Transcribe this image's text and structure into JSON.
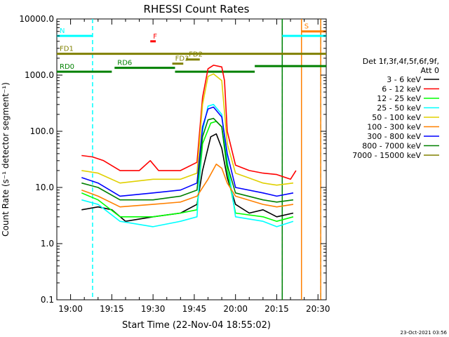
{
  "chart_data": {
    "type": "line",
    "title": "RHESSI Count Rates",
    "xlabel": "Start Time (22-Nov-04 18:55:02)",
    "ylabel": "Count Rate (s⁻¹ detector segment⁻¹)",
    "yscale": "log",
    "xlim": [
      "18:55",
      "20:33"
    ],
    "ylim": [
      0.1,
      10000.0
    ],
    "x_ticks": [
      "19:00",
      "19:15",
      "19:30",
      "19:45",
      "20:00",
      "20:15",
      "20:30"
    ],
    "y_ticks": [
      "0.1",
      "1.0",
      "10.0",
      "100.0",
      "1000.0",
      "10000.0"
    ],
    "legend": {
      "position": "right",
      "header": [
        "Det 1f,3f,4f,5f,6f,9f,",
        "Att 0"
      ]
    },
    "series": [
      {
        "name": "3 - 6 keV",
        "color": "#000000",
        "points": [
          [
            "19:04",
            4.0
          ],
          [
            "19:10",
            4.5
          ],
          [
            "19:15",
            4.0
          ],
          [
            "19:20",
            2.5
          ],
          [
            "19:30",
            3.0
          ],
          [
            "19:40",
            3.5
          ],
          [
            "19:46",
            5.0
          ],
          [
            "19:48",
            20
          ],
          [
            "19:51",
            80
          ],
          [
            "19:53",
            90
          ],
          [
            "19:55",
            50
          ],
          [
            "19:57",
            15
          ],
          [
            "20:00",
            5.0
          ],
          [
            "20:05",
            3.5
          ],
          [
            "20:10",
            4.0
          ],
          [
            "20:15",
            3.0
          ],
          [
            "20:21",
            3.5
          ]
        ]
      },
      {
        "name": "6 - 12 keV",
        "color": "#ff0000",
        "points": [
          [
            "19:04",
            37
          ],
          [
            "19:08",
            35
          ],
          [
            "19:12",
            30
          ],
          [
            "19:18",
            20
          ],
          [
            "19:25",
            20
          ],
          [
            "19:29",
            30
          ],
          [
            "19:32",
            20
          ],
          [
            "19:40",
            20
          ],
          [
            "19:46",
            28
          ],
          [
            "19:48",
            400
          ],
          [
            "19:50",
            1300
          ],
          [
            "19:52",
            1500
          ],
          [
            "19:55",
            1400
          ],
          [
            "19:56",
            800
          ],
          [
            "19:57",
            100
          ],
          [
            "20:00",
            25
          ],
          [
            "20:05",
            20
          ],
          [
            "20:10",
            18
          ],
          [
            "20:15",
            17
          ],
          [
            "20:20",
            14
          ],
          [
            "20:22",
            20
          ]
        ]
      },
      {
        "name": "12 - 25 keV",
        "color": "#00ff00",
        "points": [
          [
            "19:04",
            8.0
          ],
          [
            "19:10",
            6.0
          ],
          [
            "19:18",
            3.0
          ],
          [
            "19:30",
            3.0
          ],
          [
            "19:40",
            3.5
          ],
          [
            "19:46",
            4.0
          ],
          [
            "19:48",
            60
          ],
          [
            "19:51",
            140
          ],
          [
            "19:53",
            150
          ],
          [
            "19:55",
            120
          ],
          [
            "19:57",
            20
          ],
          [
            "20:00",
            3.5
          ],
          [
            "20:10",
            3.0
          ],
          [
            "20:15",
            2.5
          ],
          [
            "20:21",
            3.0
          ]
        ]
      },
      {
        "name": "25 - 50 keV",
        "color": "#00ffff",
        "points": [
          [
            "19:04",
            6.0
          ],
          [
            "19:10",
            5.0
          ],
          [
            "19:18",
            2.5
          ],
          [
            "19:30",
            2.0
          ],
          [
            "19:40",
            2.5
          ],
          [
            "19:46",
            3.0
          ],
          [
            "19:48",
            100
          ],
          [
            "19:50",
            280
          ],
          [
            "19:52",
            300
          ],
          [
            "19:55",
            200
          ],
          [
            "19:57",
            30
          ],
          [
            "20:00",
            3.0
          ],
          [
            "20:10",
            2.5
          ],
          [
            "20:15",
            2.0
          ],
          [
            "20:21",
            2.5
          ]
        ]
      },
      {
        "name": "50 - 100 keV",
        "color": "#e0d000",
        "points": [
          [
            "19:04",
            20
          ],
          [
            "19:10",
            18
          ],
          [
            "19:18",
            12
          ],
          [
            "19:30",
            14
          ],
          [
            "19:40",
            14
          ],
          [
            "19:46",
            18
          ],
          [
            "19:48",
            300
          ],
          [
            "19:50",
            950
          ],
          [
            "19:52",
            1050
          ],
          [
            "19:55",
            800
          ],
          [
            "19:57",
            60
          ],
          [
            "20:00",
            18
          ],
          [
            "20:10",
            12
          ],
          [
            "20:15",
            11
          ],
          [
            "20:21",
            12
          ]
        ]
      },
      {
        "name": "100 - 300 keV",
        "color": "#ff8000",
        "points": [
          [
            "19:04",
            9.0
          ],
          [
            "19:10",
            7.0
          ],
          [
            "19:18",
            4.5
          ],
          [
            "19:30",
            5.0
          ],
          [
            "19:40",
            5.5
          ],
          [
            "19:46",
            7.0
          ],
          [
            "19:50",
            14
          ],
          [
            "19:53",
            26
          ],
          [
            "19:55",
            22
          ],
          [
            "19:57",
            12
          ],
          [
            "20:00",
            7.0
          ],
          [
            "20:10",
            5.0
          ],
          [
            "20:15",
            4.5
          ],
          [
            "20:21",
            5.0
          ]
        ]
      },
      {
        "name": "300 - 800 keV",
        "color": "#0000ff",
        "points": [
          [
            "19:04",
            15
          ],
          [
            "19:10",
            12
          ],
          [
            "19:18",
            7.0
          ],
          [
            "19:30",
            8.0
          ],
          [
            "19:40",
            9.0
          ],
          [
            "19:46",
            12
          ],
          [
            "19:48",
            120
          ],
          [
            "19:50",
            250
          ],
          [
            "19:52",
            270
          ],
          [
            "19:55",
            180
          ],
          [
            "19:57",
            40
          ],
          [
            "20:00",
            10
          ],
          [
            "20:10",
            8.0
          ],
          [
            "20:15",
            7.0
          ],
          [
            "20:21",
            8.0
          ]
        ]
      },
      {
        "name": "800 - 7000 keV",
        "color": "#008000",
        "points": [
          [
            "19:04",
            12
          ],
          [
            "19:10",
            10
          ],
          [
            "19:18",
            6.0
          ],
          [
            "19:30",
            6.0
          ],
          [
            "19:40",
            7.0
          ],
          [
            "19:46",
            9.0
          ],
          [
            "19:48",
            80
          ],
          [
            "19:50",
            160
          ],
          [
            "19:52",
            170
          ],
          [
            "19:55",
            120
          ],
          [
            "19:57",
            25
          ],
          [
            "20:00",
            8.0
          ],
          [
            "20:10",
            6.0
          ],
          [
            "20:15",
            5.5
          ],
          [
            "20:21",
            6.0
          ]
        ]
      },
      {
        "name": "7000 - 15000 keV",
        "color": "#808000",
        "points": []
      }
    ],
    "annotations": [
      {
        "label": "N",
        "color": "#00ffff",
        "y": 5000,
        "x_start": "18:55",
        "x_end": "19:08"
      },
      {
        "label": "F",
        "color": "#ff0000",
        "y": 4000,
        "x_start": "19:29",
        "x_end": "19:31"
      },
      {
        "label": "S",
        "color": "#ff8000",
        "y": 6000,
        "x_start": "20:24",
        "x_end": "20:33"
      },
      {
        "label": "",
        "color": "#00ffff",
        "y": 5000,
        "x_start": "20:17",
        "x_end": "20:33"
      },
      {
        "label": "FD1",
        "color": "#808000",
        "y": 2400,
        "x_start": "18:55",
        "x_end": "20:33"
      },
      {
        "label": "FD2",
        "color": "#808000",
        "y": 1900,
        "x_start": "19:42",
        "x_end": "19:47"
      },
      {
        "label": "FD3",
        "color": "#808000",
        "y": 1600,
        "x_start": "19:37",
        "x_end": "19:41"
      },
      {
        "label": "RD0",
        "color": "#008000",
        "y": 1150,
        "x_start": "18:55",
        "x_end": "19:15"
      },
      {
        "label": "RD6",
        "color": "#008000",
        "y": 1350,
        "x_start": "19:16",
        "x_end": "19:38"
      },
      {
        "label": "",
        "color": "#008000",
        "y": 1150,
        "x_start": "19:38",
        "x_end": "20:07"
      },
      {
        "label": "",
        "color": "#008000",
        "y": 1450,
        "x_start": "20:07",
        "x_end": "20:33"
      }
    ],
    "vertical_markers": [
      {
        "x": "19:08",
        "color": "#00ffff",
        "style": "dashed"
      },
      {
        "x": "20:17",
        "color": "#00ffff",
        "style": "dashed"
      },
      {
        "x": "20:17",
        "color": "#008000",
        "style": "solid"
      },
      {
        "x": "20:24",
        "color": "#ff8000",
        "style": "solid"
      },
      {
        "x": "20:31",
        "color": "#00ffff",
        "style": "dashed"
      },
      {
        "x": "20:31",
        "color": "#ff8000",
        "style": "solid"
      }
    ],
    "footer_date": "23-Oct-2021 03:56"
  }
}
